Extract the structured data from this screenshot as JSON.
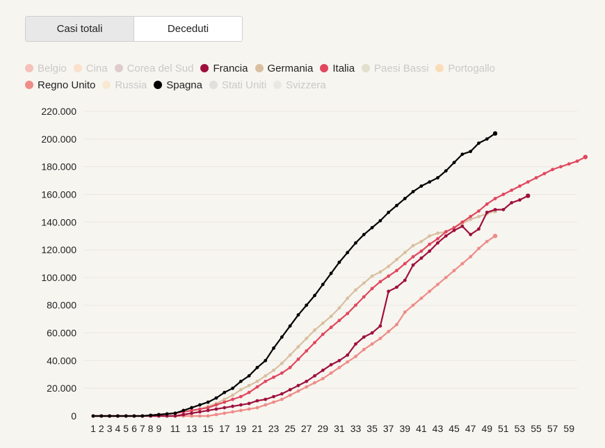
{
  "tabs": [
    {
      "label": "Casi totali",
      "active": true
    },
    {
      "label": "Deceduti",
      "active": false
    }
  ],
  "legend": [
    {
      "name": "Belgio",
      "color": "#f4b7b0",
      "active": false
    },
    {
      "name": "Cina",
      "color": "#fbdcc4",
      "active": false
    },
    {
      "name": "Corea del Sud",
      "color": "#dcc4c8",
      "active": false
    },
    {
      "name": "Francia",
      "color": "#9e0f3c",
      "active": true
    },
    {
      "name": "Germania",
      "color": "#d8bfa0",
      "active": true
    },
    {
      "name": "Italia",
      "color": "#e0475e",
      "active": true
    },
    {
      "name": "Paesi Bassi",
      "color": "#dcdcc4",
      "active": false
    },
    {
      "name": "Portogallo",
      "color": "#fbd7b0",
      "active": false
    },
    {
      "name": "Regno Unito",
      "color": "#ee8c88",
      "active": true
    },
    {
      "name": "Russia",
      "color": "#f8e8cc",
      "active": false
    },
    {
      "name": "Spagna",
      "color": "#000000",
      "active": true
    },
    {
      "name": "Stati Uniti",
      "color": "#dcdcdc",
      "active": false
    },
    {
      "name": "Svizzera",
      "color": "#e6e6e0",
      "active": false
    }
  ],
  "chart_data": {
    "type": "line",
    "xlabel": "",
    "ylabel": "",
    "xlim": [
      1,
      60
    ],
    "ylim": [
      0,
      220000
    ],
    "x_ticks": [
      1,
      2,
      3,
      4,
      5,
      6,
      7,
      8,
      9,
      11,
      13,
      15,
      17,
      19,
      21,
      23,
      25,
      27,
      29,
      31,
      33,
      35,
      37,
      39,
      41,
      43,
      45,
      47,
      49,
      51,
      53,
      55,
      57,
      59
    ],
    "y_ticks": [
      "0",
      "20.000",
      "40.000",
      "60.000",
      "80.000",
      "100.000",
      "120.000",
      "140.000",
      "160.000",
      "180.000",
      "200.000",
      "220.000"
    ],
    "y_tick_values": [
      0,
      20000,
      40000,
      60000,
      80000,
      100000,
      120000,
      140000,
      160000,
      180000,
      200000,
      220000
    ],
    "grid": true,
    "series": [
      {
        "name": "Regno Unito",
        "color": "#ee8c88",
        "values": [
          0,
          0,
          0,
          0,
          0,
          0,
          0,
          0,
          0,
          0,
          0,
          0,
          0,
          0,
          0,
          1000,
          2000,
          3000,
          4000,
          5000,
          6000,
          8000,
          10000,
          12000,
          15000,
          18000,
          21000,
          24000,
          27000,
          31000,
          35000,
          39000,
          43000,
          48000,
          52000,
          56000,
          61000,
          66000,
          75000,
          80000,
          85000,
          90000,
          95000,
          100000,
          105000,
          110000,
          115000,
          121000,
          126000,
          130000
        ]
      },
      {
        "name": "Germania",
        "color": "#d8bfa0",
        "values": [
          0,
          0,
          0,
          0,
          0,
          0,
          200,
          500,
          1000,
          1500,
          2000,
          3000,
          4000,
          5000,
          7000,
          9000,
          12000,
          15000,
          19000,
          22000,
          25000,
          29000,
          33000,
          38000,
          44000,
          50000,
          56000,
          62000,
          67000,
          72000,
          78000,
          85000,
          91000,
          96000,
          101000,
          104000,
          108000,
          113000,
          118000,
          123000,
          126000,
          130000,
          132000,
          133000,
          136000,
          139000,
          142000,
          144000,
          146000,
          148000
        ]
      },
      {
        "name": "Italia",
        "color": "#e0475e",
        "values": [
          0,
          0,
          0,
          0,
          0,
          0,
          0,
          500,
          1000,
          1500,
          2000,
          3000,
          4000,
          5000,
          6000,
          8000,
          10000,
          12000,
          14000,
          17000,
          21000,
          25000,
          28000,
          31000,
          35000,
          41000,
          47000,
          53000,
          59000,
          64000,
          69000,
          74000,
          80000,
          86000,
          92000,
          97000,
          101000,
          105000,
          110000,
          115000,
          119000,
          124000,
          128000,
          133000,
          136000,
          140000,
          144000,
          148000,
          153000,
          157000,
          160000,
          163000,
          166000,
          169000,
          172000,
          175000,
          178000,
          180000,
          182000,
          184000,
          187000
        ]
      },
      {
        "name": "Francia",
        "color": "#9e0f3c",
        "values": [
          0,
          0,
          0,
          0,
          0,
          0,
          0,
          0,
          0,
          0,
          0,
          1000,
          2000,
          3000,
          4000,
          5000,
          6000,
          7000,
          8000,
          9000,
          11000,
          12000,
          14000,
          16000,
          19000,
          22000,
          25000,
          29000,
          33000,
          37000,
          40000,
          44000,
          52000,
          57000,
          60000,
          65000,
          90000,
          93000,
          98000,
          109000,
          114000,
          119000,
          125000,
          130000,
          134000,
          137000,
          131000,
          135000,
          147000,
          149000,
          149000,
          154000,
          156000,
          159000
        ]
      },
      {
        "name": "Spagna",
        "color": "#000000",
        "values": [
          0,
          0,
          0,
          0,
          0,
          0,
          0,
          500,
          1000,
          1500,
          2000,
          4000,
          6000,
          8000,
          10000,
          13000,
          17000,
          20000,
          25000,
          29000,
          35000,
          40000,
          49000,
          57000,
          65000,
          73000,
          80000,
          87000,
          95000,
          103000,
          111000,
          118000,
          125000,
          131000,
          136000,
          141000,
          147000,
          152000,
          157000,
          162000,
          166000,
          169000,
          172000,
          177000,
          183000,
          189000,
          191000,
          197000,
          200000,
          204000
        ]
      }
    ]
  }
}
